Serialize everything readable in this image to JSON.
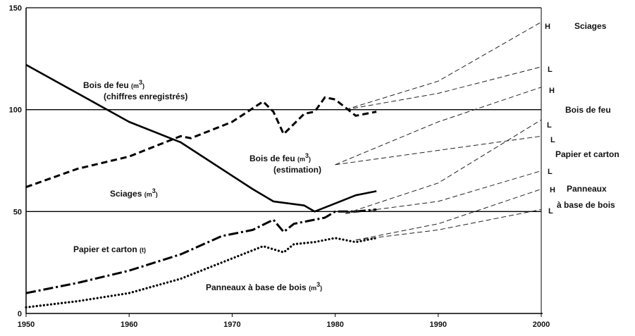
{
  "chart_data": {
    "type": "line",
    "title": "",
    "xlabel": "",
    "ylabel": "",
    "xlim": [
      1950,
      2000
    ],
    "ylim": [
      0,
      150
    ],
    "x_ticks": [
      "1950",
      "1960",
      "1970",
      "1980",
      "1990",
      "2000"
    ],
    "y_ticks": [
      "0",
      "50",
      "100",
      "150"
    ],
    "series": [
      {
        "id": "firewood_recorded",
        "style": "solid",
        "points": [
          [
            1950,
            122
          ],
          [
            1960,
            94
          ],
          [
            1965,
            84
          ],
          [
            1972,
            61
          ],
          [
            1974,
            55
          ],
          [
            1977,
            53
          ],
          [
            1978,
            50
          ],
          [
            1980,
            54
          ],
          [
            1982,
            58
          ],
          [
            1984,
            60
          ]
        ]
      },
      {
        "id": "sawnwood",
        "style": "dashed-thick",
        "points": [
          [
            1950,
            62
          ],
          [
            1955,
            71
          ],
          [
            1960,
            77
          ],
          [
            1965,
            87
          ],
          [
            1966,
            86
          ],
          [
            1970,
            94
          ],
          [
            1973,
            104
          ],
          [
            1974,
            99
          ],
          [
            1975,
            88
          ],
          [
            1977,
            98
          ],
          [
            1978,
            99
          ],
          [
            1979,
            106
          ],
          [
            1980,
            105
          ],
          [
            1982,
            97
          ],
          [
            1984,
            99
          ]
        ]
      },
      {
        "id": "paper",
        "style": "dashdot",
        "points": [
          [
            1950,
            10
          ],
          [
            1955,
            15
          ],
          [
            1960,
            21
          ],
          [
            1965,
            29
          ],
          [
            1969,
            38
          ],
          [
            1972,
            41
          ],
          [
            1974,
            46
          ],
          [
            1975,
            40
          ],
          [
            1976,
            44
          ],
          [
            1979,
            47
          ],
          [
            1980,
            50
          ],
          [
            1982,
            50
          ],
          [
            1984,
            51
          ]
        ]
      },
      {
        "id": "panels",
        "style": "dotted",
        "points": [
          [
            1950,
            3
          ],
          [
            1955,
            6
          ],
          [
            1960,
            10
          ],
          [
            1965,
            17
          ],
          [
            1970,
            27
          ],
          [
            1973,
            33
          ],
          [
            1975,
            30
          ],
          [
            1976,
            34
          ],
          [
            1978,
            35
          ],
          [
            1980,
            37
          ],
          [
            1982,
            35
          ],
          [
            1984,
            37
          ]
        ]
      }
    ],
    "projections": [
      {
        "from": [
          1981,
          100
        ],
        "to": [
          2000,
          143
        ],
        "via": [
          1990,
          114
        ],
        "case": "H",
        "group": "Sciages"
      },
      {
        "from": [
          1981,
          100
        ],
        "to": [
          2000,
          121
        ],
        "via": [
          1990,
          108
        ],
        "case": "L",
        "group": "Sciages"
      },
      {
        "from": [
          1980,
          73
        ],
        "to": [
          2000,
          111
        ],
        "via": [
          1990,
          94
        ],
        "case": "H",
        "group": "Bois de feu"
      },
      {
        "from": [
          1980,
          73
        ],
        "to": [
          2000,
          87
        ],
        "via": [
          1990,
          80
        ],
        "case": "L",
        "group": "Bois de feu"
      },
      {
        "from": [
          1981,
          49
        ],
        "to": [
          2000,
          95
        ],
        "via": [
          1990,
          64
        ],
        "case": "",
        "group": "Papier et carton"
      },
      {
        "from": [
          1981,
          49
        ],
        "to": [
          2000,
          70
        ],
        "via": [
          1990,
          55
        ],
        "case": "L",
        "group": "Papier et carton"
      },
      {
        "from": [
          1982,
          36
        ],
        "to": [
          2000,
          61
        ],
        "via": [
          1990,
          44
        ],
        "case": "H",
        "group": "Panneaux"
      },
      {
        "from": [
          1982,
          36
        ],
        "to": [
          2000,
          51
        ],
        "via": [
          1990,
          41
        ],
        "case": "L",
        "group": "Panneaux"
      }
    ],
    "reference_lines": [
      50,
      100,
      150
    ],
    "inline_labels": {
      "firewood_recorded_main": "Bois de feu",
      "firewood_recorded_unit": "(m",
      "firewood_recorded_sup": "3",
      "firewood_recorded_close": ")",
      "firewood_recorded_note": "(chiffres enregistrés)",
      "firewood_est_main": "Bois de feu",
      "firewood_est_unit": "(m",
      "firewood_est_sup": "3",
      "firewood_est_close": ")",
      "firewood_est_note": "(estimation)",
      "sawnwood_main": "Sciages",
      "sawnwood_unit": "(m",
      "sawnwood_sup": "3",
      "sawnwood_close": ")",
      "paper_main": "Papier et carton",
      "paper_unit": "(t)",
      "panels_main": "Panneaux à base de bois",
      "panels_unit": "(m",
      "panels_sup": "3",
      "panels_close": ")"
    },
    "right_labels": {
      "sciages": "Sciages",
      "bois_de_feu": "Bois de feu",
      "papier": "Papier et carton",
      "panneaux_1": "Panneaux",
      "panneaux_2": "à base de bois"
    },
    "case_labels": {
      "sciages_h": "H",
      "sciages_l": "L",
      "bois_h": "H",
      "bois_l": "L",
      "papier_top": "L",
      "papier_l": "L",
      "panneaux_h": "H",
      "panneaux_l": "L"
    }
  }
}
